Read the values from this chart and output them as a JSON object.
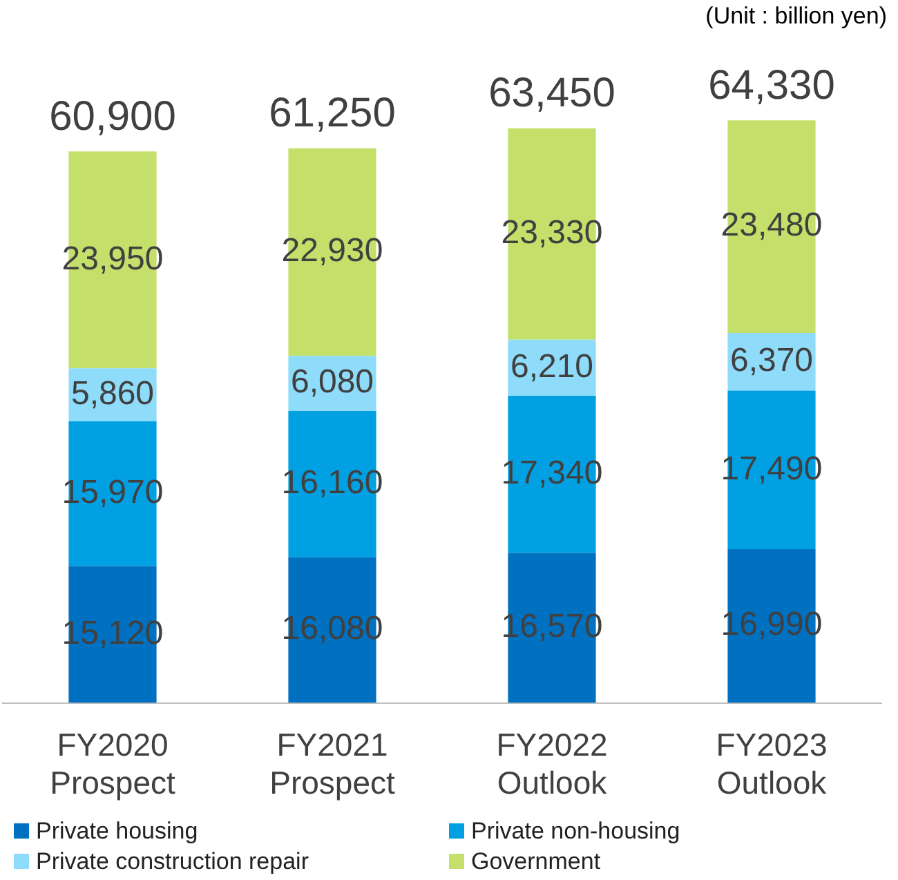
{
  "chart_data": {
    "type": "bar",
    "stacked": true,
    "grid": false,
    "legend": "bottom",
    "categories": [
      "FY2020\nProspect",
      "FY2021\nProspect",
      "FY2022\nOutlook",
      "FY2023\nOutlook"
    ],
    "series": [
      {
        "name": "Private housing",
        "color": "#0070c0",
        "values": [
          15120,
          16080,
          16570,
          16990
        ],
        "value_labels": [
          "15,120",
          "16,080",
          "16,570",
          "16,990"
        ]
      },
      {
        "name": "Private non-housing",
        "color": "#00a0e2",
        "values": [
          15970,
          16160,
          17340,
          17490
        ],
        "value_labels": [
          "15,970",
          "16,160",
          "17,340",
          "17,490"
        ]
      },
      {
        "name": "Private construction repair",
        "color": "#8edcf9",
        "values": [
          5860,
          6080,
          6210,
          6370
        ],
        "value_labels": [
          "5,860",
          "6,080",
          "6,210",
          "6,370"
        ]
      },
      {
        "name": "Government",
        "color": "#c4e06a",
        "values": [
          23950,
          22930,
          23330,
          23480
        ],
        "value_labels": [
          "23,950",
          "22,930",
          "23,330",
          "23,480"
        ]
      }
    ],
    "totals": [
      "60,900",
      "61,250",
      "63,450",
      "64,330"
    ],
    "annotations": [
      "(Unit : billion yen)"
    ]
  }
}
